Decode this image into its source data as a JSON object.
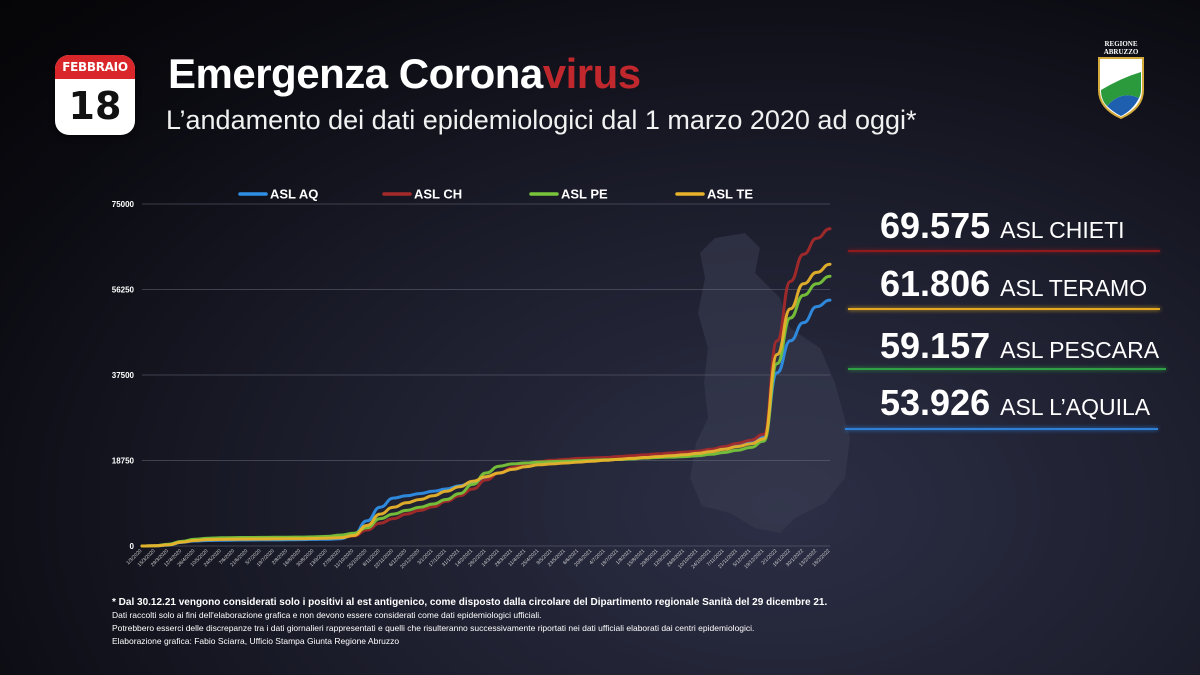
{
  "calendar": {
    "month": "FEBBRAIO",
    "day": "18"
  },
  "title": {
    "main": "Emergenza Corona",
    "accent": "virus"
  },
  "subtitle": "L’andamento dei dati epidemiologici dal 1 marzo 2020 ad oggi*",
  "logo": {
    "line1": "REGIONE",
    "line2": "ABRUZZO"
  },
  "stats": [
    {
      "value": "69.575",
      "label": "ASL CHIETI",
      "color": "#8e1a1d"
    },
    {
      "value": "61.806",
      "label": "ASL TERAMO",
      "color": "#e3a923"
    },
    {
      "value": "59.157",
      "label": "ASL PESCARA",
      "color": "#2f9e44"
    },
    {
      "value": "53.926",
      "label": "ASL L’AQUILA",
      "color": "#2f7fd6"
    }
  ],
  "notes": [
    "* Dal 30.12.21 vengono considerati solo i positivi al est antigenico, come disposto dalla circolare del Dipartimento regionale Sanità del 29 dicembre 21.",
    "Dati raccolti solo ai fini dell'elaborazione grafica e non devono essere considerati come dati epidemiologici ufficiali.",
    "Potrebbero esserci delle discrepanze tra i dati giornalieri rappresentati e quelli che risulteranno successivamente riportati nei dati ufficiali elaborati dai centri epidemiologici.",
    "Elaborazione grafica: Fabio Sciarra, Ufficio Stampa Giunta Regione Abruzzo"
  ],
  "chart_data": {
    "type": "line",
    "ylim": [
      0,
      75000
    ],
    "yticks": [
      0,
      18750,
      37500,
      56250,
      75000
    ],
    "grid": true,
    "legend_position": "top",
    "x": [
      "1/3/2020",
      "15/3/2020",
      "29/3/2020",
      "12/4/2020",
      "26/4/2020",
      "10/5/2020",
      "24/5/2020",
      "7/6/2020",
      "21/6/2020",
      "5/7/2020",
      "19/7/2020",
      "2/8/2020",
      "16/8/2020",
      "30/8/2020",
      "13/9/2020",
      "27/9/2020",
      "11/10/2020",
      "25/10/2020",
      "8/11/2020",
      "22/11/2020",
      "6/12/2020",
      "20/12/2020",
      "3/1/2021",
      "17/1/2021",
      "31/1/2021",
      "14/2/2021",
      "28/2/2021",
      "14/3/2021",
      "28/3/2021",
      "11/4/2021",
      "25/4/2021",
      "9/5/2021",
      "23/5/2021",
      "6/6/2021",
      "20/6/2021",
      "4/7/2021",
      "18/7/2021",
      "1/8/2021",
      "15/8/2021",
      "29/8/2021",
      "12/9/2021",
      "26/9/2021",
      "10/10/2021",
      "24/10/2021",
      "7/11/2021",
      "21/11/2021",
      "5/12/2021",
      "19/12/2021",
      "2/1/2022",
      "16/1/2022",
      "30/1/2022",
      "13/2/2022",
      "18/2/2022"
    ],
    "series": [
      {
        "name": "ASL AQ",
        "color": "#2f8fe6",
        "values": [
          0,
          50,
          200,
          800,
          1100,
          1200,
          1250,
          1300,
          1320,
          1330,
          1340,
          1360,
          1400,
          1450,
          1500,
          1600,
          2500,
          5500,
          8500,
          10500,
          11000,
          11500,
          12000,
          12500,
          13200,
          14000,
          15000,
          16000,
          17000,
          17800,
          18200,
          18400,
          18600,
          18700,
          18800,
          18900,
          19000,
          19200,
          19500,
          19800,
          20000,
          20200,
          20500,
          21000,
          21600,
          22300,
          23000,
          24000,
          38000,
          45000,
          49000,
          52500,
          53926
        ]
      },
      {
        "name": "ASL CH",
        "color": "#a42a2a",
        "values": [
          0,
          60,
          300,
          900,
          1300,
          1500,
          1550,
          1600,
          1620,
          1630,
          1640,
          1660,
          1700,
          1750,
          1800,
          1900,
          2200,
          3500,
          5000,
          6000,
          7000,
          7800,
          8600,
          9800,
          11000,
          12500,
          14500,
          16000,
          17200,
          18000,
          18500,
          18800,
          19000,
          19200,
          19300,
          19400,
          19600,
          19800,
          20000,
          20200,
          20400,
          20600,
          20800,
          21200,
          21800,
          22500,
          23200,
          24500,
          45000,
          58000,
          64000,
          67500,
          69575
        ]
      },
      {
        "name": "ASL PE",
        "color": "#78c43a",
        "values": [
          0,
          70,
          400,
          1000,
          1500,
          1700,
          1800,
          1850,
          1870,
          1880,
          1900,
          1920,
          1950,
          2000,
          2100,
          2400,
          2800,
          4000,
          6000,
          7000,
          7800,
          8500,
          9200,
          10200,
          11500,
          13500,
          16000,
          17500,
          18000,
          18200,
          18400,
          18500,
          18600,
          18700,
          18800,
          18900,
          19000,
          19100,
          19300,
          19400,
          19500,
          19600,
          19800,
          20100,
          20500,
          21000,
          21600,
          23000,
          40000,
          50000,
          55000,
          57500,
          59157
        ]
      },
      {
        "name": "ASL TE",
        "color": "#e8b32b",
        "values": [
          0,
          50,
          250,
          850,
          1200,
          1400,
          1450,
          1500,
          1520,
          1530,
          1550,
          1570,
          1600,
          1650,
          1700,
          1800,
          2300,
          4500,
          7000,
          8500,
          9500,
          10200,
          11000,
          12000,
          13000,
          14200,
          15200,
          16000,
          16800,
          17400,
          17800,
          18000,
          18200,
          18400,
          18600,
          18800,
          19000,
          19200,
          19400,
          19600,
          19800,
          20000,
          20300,
          20700,
          21200,
          21800,
          22400,
          23500,
          42000,
          52000,
          57500,
          60000,
          61806
        ]
      }
    ]
  }
}
